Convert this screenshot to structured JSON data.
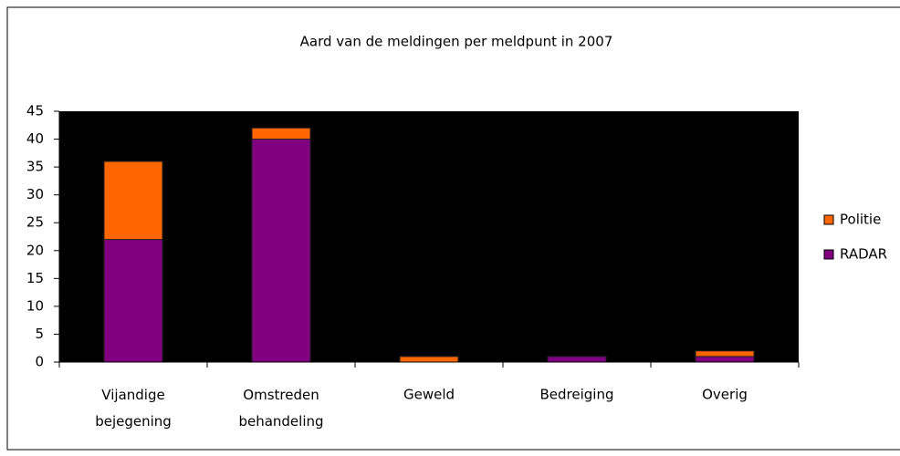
{
  "chart_data": {
    "type": "stacked_bar",
    "title": "Aard van de meldingen per meldpunt in 2007",
    "categories": [
      "Vijandige bejegening",
      "Omstreden behandeling",
      "Geweld",
      "Bedreiging",
      "Overig"
    ],
    "series": [
      {
        "name": "RADAR",
        "color": "#800080",
        "values": [
          22,
          40,
          0,
          1,
          1
        ]
      },
      {
        "name": "Politie",
        "color": "#ff6600",
        "values": [
          14,
          2,
          1,
          0,
          1
        ]
      }
    ],
    "ylim": [
      0,
      45
    ],
    "yticks": [
      0,
      5,
      10,
      15,
      20,
      25,
      30,
      35,
      40,
      45
    ],
    "plot_background": "#000000",
    "legend": "right"
  }
}
